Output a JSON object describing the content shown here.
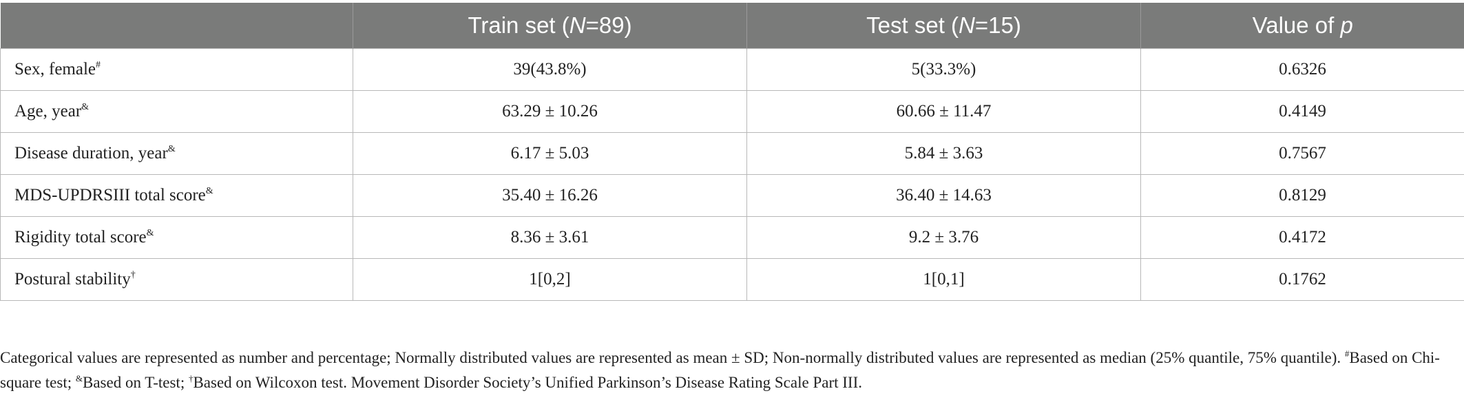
{
  "table": {
    "headers": {
      "col0": "",
      "train_prefix": "Train set (",
      "train_italic": "N",
      "train_suffix": "=89)",
      "test_prefix": "Test set (",
      "test_italic": "N",
      "test_suffix": "=15)",
      "p_prefix": "Value of ",
      "p_italic": "p"
    },
    "rows": [
      {
        "label": "Sex, female",
        "mark": "#",
        "train": "39(43.8%)",
        "test": "5(33.3%)",
        "p": "0.6326"
      },
      {
        "label": "Age, year",
        "mark": "&",
        "train": "63.29 ± 10.26",
        "test": "60.66 ± 11.47",
        "p": "0.4149"
      },
      {
        "label": "Disease duration, year",
        "mark": "&",
        "train": "6.17 ± 5.03",
        "test": "5.84 ± 3.63",
        "p": "0.7567"
      },
      {
        "label": "MDS-UPDRSIII total score",
        "mark": "&",
        "train": "35.40 ± 16.26",
        "test": "36.40 ± 14.63",
        "p": "0.8129"
      },
      {
        "label": "Rigidity total score",
        "mark": "&",
        "train": "8.36 ± 3.61",
        "test": "9.2 ± 3.76",
        "p": "0.4172"
      },
      {
        "label": "Postural stability",
        "mark": "†",
        "train": "1[0,2]",
        "test": "1[0,1]",
        "p": "0.1762"
      }
    ]
  },
  "footnote": {
    "part1": "Categorical values are represented as number and percentage; Normally distributed values are represented as mean ± SD; Non-normally distributed values are represented as median (25% quantile, 75% quantile). ",
    "mark1": "#",
    "text1": "Based on Chi-square test; ",
    "mark2": "&",
    "text2": "Based on T-test; ",
    "mark3": "†",
    "text3": "Based on Wilcoxon test. Movement Disorder Society’s Unified Parkinson’s Disease Rating Scale Part III."
  }
}
